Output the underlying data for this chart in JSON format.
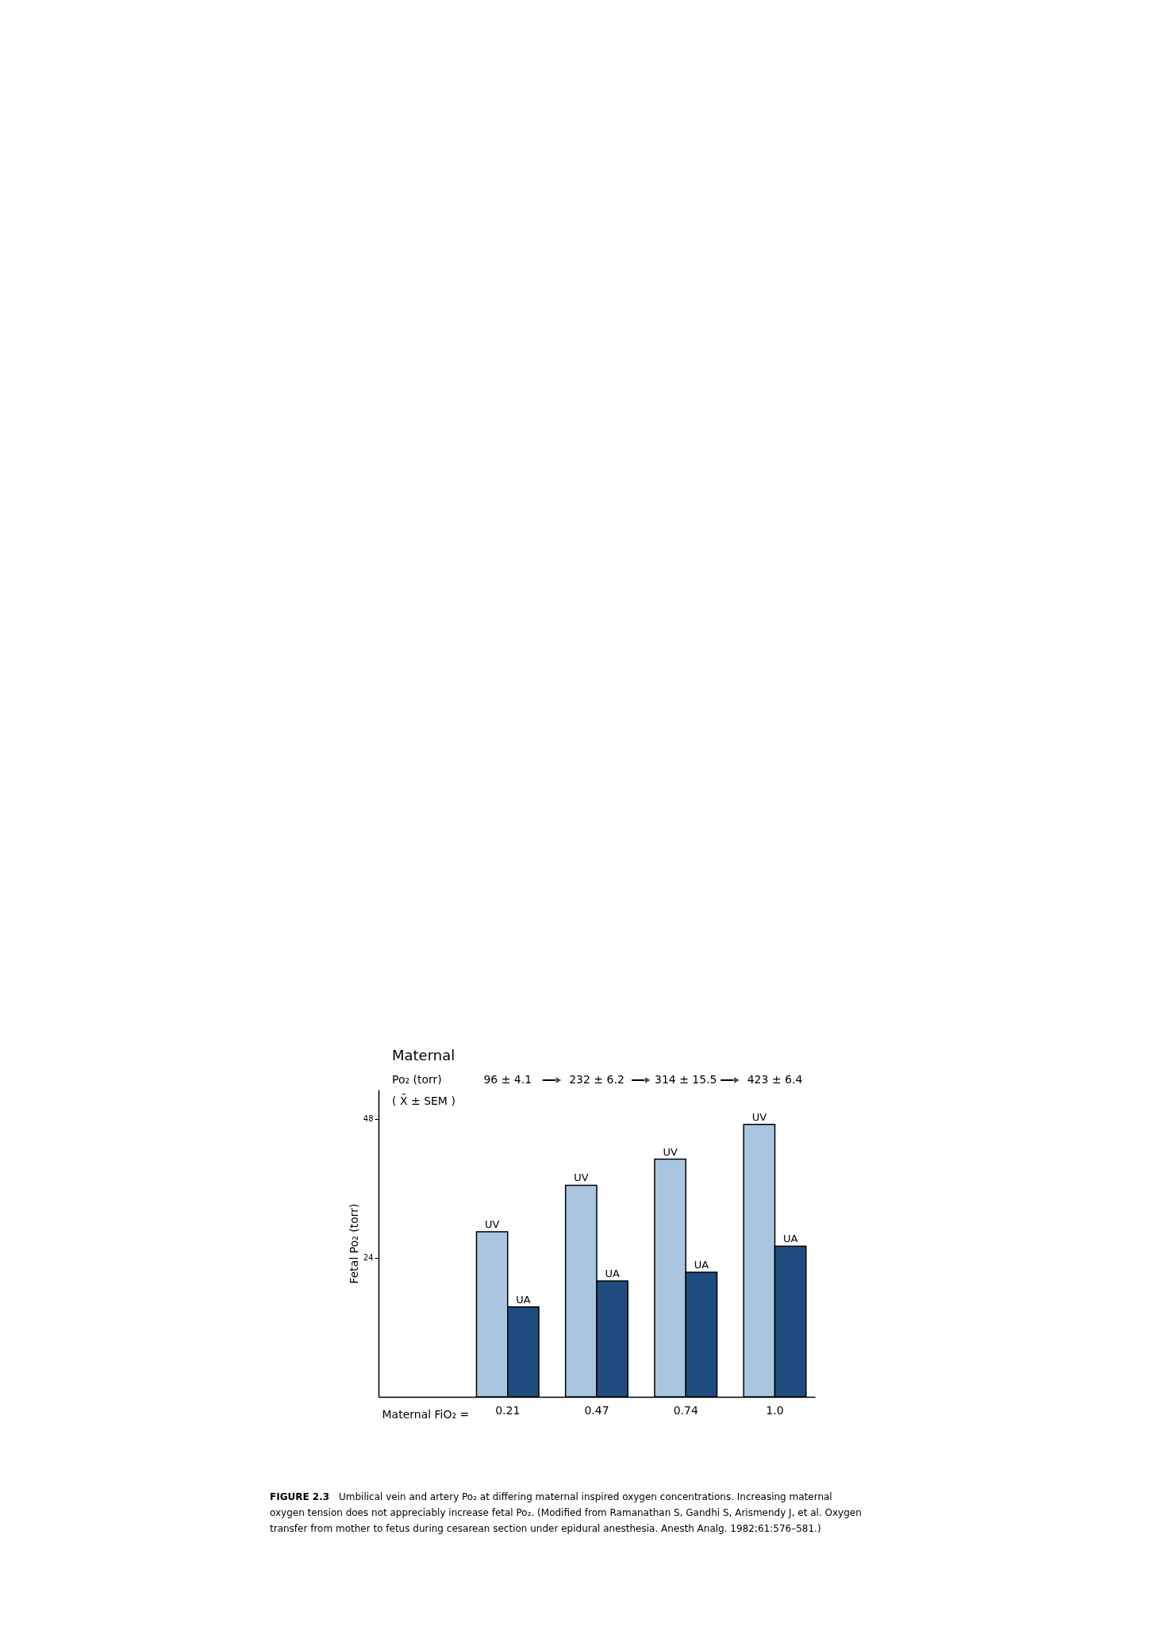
{
  "chart_data": {
    "type": "bar",
    "title": "Maternal",
    "categories": [
      null,
      "0.21",
      "0.47",
      "0.74",
      "1.0"
    ],
    "series": [
      {
        "name": "UV",
        "color": "#a9c5e0",
        "values": [
          null,
          28.5,
          36.5,
          41,
          47
        ]
      },
      {
        "name": "UA",
        "color": "#1f4c7e",
        "values": [
          null,
          15.5,
          20,
          21.5,
          26
        ]
      }
    ],
    "xlabel": "Maternal FiO₂ =",
    "ylabel": "Fetal Po₂ (torr)",
    "ylim": [
      0,
      53
    ],
    "yticks": [
      24,
      48
    ],
    "grid": false,
    "legend": false,
    "annotations": [
      "Po₂ (torr)",
      "96 ± 4.1",
      "232 ± 6.2",
      "314 ± 15.5",
      "423 ± 6.4",
      "( X̄ ± SEM )",
      "FIGURE 2.3",
      "Umbilical vein and artery Po₂ at differing maternal inspired oxygen concentrations. Increasing maternal",
      "oxygen tension does not appreciably increase fetal Po₂. (Modified from Ramanathan S, Gandhi S, Arismendy J, et al. Oxygen",
      "transfer from mother to fetus during cesarean section under epidural anesthesia. Anesth Analg. 1982;61:576–581.)"
    ]
  }
}
